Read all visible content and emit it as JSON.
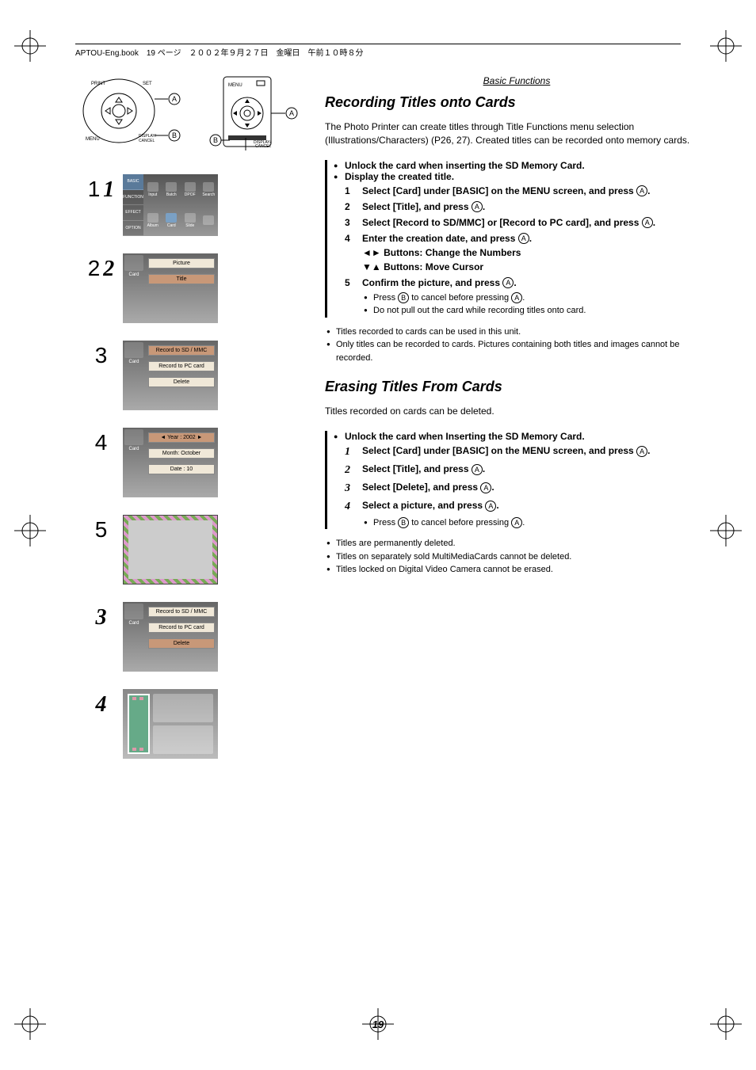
{
  "header": "APTOU-Eng.book　19 ページ　２００２年９月２７日　金曜日　午前１０時８分",
  "section_label": "Basic Functions",
  "page_number": "19",
  "controls": {
    "pad_labels": {
      "print": "PRINT",
      "set": "SET",
      "menu": "MENU",
      "display_cancel": "DISPLAY/\nCANCEL",
      "markerA": "A",
      "markerB": "B"
    },
    "remote_labels": {
      "menu": "MENU",
      "display_cancel": "DISPLAY/\nCANCEL",
      "markerA": "A",
      "markerB": "B"
    }
  },
  "screens": {
    "s1": {
      "side": [
        "BASIC",
        "FUNCTION",
        "EFFECT",
        "OPTION"
      ],
      "cells": [
        "Input",
        "Batch",
        "DPOF",
        "Search",
        "Album",
        "Card",
        "Slide",
        ""
      ]
    },
    "s2": {
      "side_label": "Card",
      "items": [
        "Picture",
        "Title"
      ]
    },
    "s3": {
      "side_label": "Card",
      "items": [
        "Record to SD / MMC",
        "Record to PC card",
        "Delete"
      ]
    },
    "s4": {
      "side_label": "Card",
      "items": [
        "◄   Year   :   2002   ►",
        "Month: October",
        "Date   :      10"
      ]
    },
    "s6": {
      "side_label": "Card",
      "items": [
        "Record to SD / MMC",
        "Record to PC card",
        "Delete"
      ],
      "sel": 2
    }
  },
  "recording": {
    "title": "Recording Titles onto Cards",
    "intro": "The Photo Printer can create titles through Title Functions menu selection (Illustrations/Characters) (P26, 27). Created titles can be recorded onto memory cards.",
    "pre": [
      "Unlock the card when inserting the SD Memory Card.",
      "Display the created title."
    ],
    "steps": [
      {
        "n": "1",
        "t": "Select [Card] under [BASIC] on the MENU screen, and press ",
        "btn": "A",
        "t2": "."
      },
      {
        "n": "2",
        "t": "Select [Title], and press ",
        "btn": "A",
        "t2": "."
      },
      {
        "n": "3",
        "t": "Select [Record to SD/MMC] or [Record to PC card], and press ",
        "btn": "A",
        "t2": "."
      },
      {
        "n": "4",
        "t": "Enter the creation date, and press ",
        "btn": "A",
        "t2": ".",
        "extra": [
          "◄► Buttons: Change the Numbers",
          "▼▲ Buttons: Move Cursor"
        ]
      },
      {
        "n": "5",
        "t": "Confirm the picture, and press ",
        "btn": "A",
        "t2": ".",
        "subs": [
          {
            "pre": "Press ",
            "btn": "B",
            "mid": " to cancel before pressing ",
            "btn2": "A",
            "post": "."
          },
          {
            "text": "Do not pull out the card while recording titles onto card."
          }
        ]
      }
    ],
    "notes": [
      "Titles recorded to cards can be used in this unit.",
      "Only titles can be recorded to cards. Pictures containing both titles and images cannot be recorded."
    ]
  },
  "erasing": {
    "title": "Erasing Titles From Cards",
    "intro": "Titles recorded on cards can be deleted.",
    "pre": [
      "Unlock the card when Inserting the SD Memory Card."
    ],
    "steps": [
      {
        "n": "1",
        "t": "Select [Card] under [BASIC] on the MENU screen, and press ",
        "btn": "A",
        "t2": "."
      },
      {
        "n": "2",
        "t": "Select [Title], and press ",
        "btn": "A",
        "t2": "."
      },
      {
        "n": "3",
        "t": "Select [Delete], and press ",
        "btn": "A",
        "t2": "."
      },
      {
        "n": "4",
        "t": "Select a picture, and press ",
        "btn": "A",
        "t2": ".",
        "subs": [
          {
            "pre": "Press ",
            "btn": "B",
            "mid": " to cancel before pressing ",
            "btn2": "A",
            "post": "."
          }
        ]
      }
    ],
    "notes": [
      "Titles are permanently deleted.",
      "Titles on separately sold MultiMediaCards cannot be deleted.",
      "Titles locked on Digital Video Camera cannot be erased."
    ]
  },
  "left_nums": {
    "i1": [
      "1",
      "1"
    ],
    "i2": [
      "2",
      "2"
    ],
    "i3": [
      "3"
    ],
    "i4": [
      "4"
    ],
    "i5": [
      "5"
    ],
    "i6": [
      "3"
    ],
    "i7": [
      "4"
    ]
  }
}
